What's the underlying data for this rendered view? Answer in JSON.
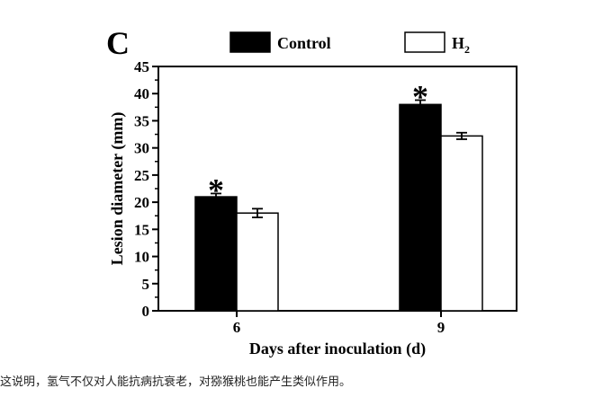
{
  "panel_label": "C",
  "caption": "这说明，氢气不仅对人能抗病抗衰老，对猕猴桃也能产生类似作用。",
  "chart_data": {
    "type": "bar",
    "title": "",
    "xlabel": "Days after inoculation (d)",
    "ylabel": "Lesion diameter (mm)",
    "ylim": [
      0,
      45
    ],
    "yticks": [
      0,
      5,
      10,
      15,
      20,
      25,
      30,
      35,
      40,
      45
    ],
    "categories": [
      "6",
      "9"
    ],
    "legend_position": "top",
    "series": [
      {
        "name": "Control",
        "legend_main": "Control",
        "legend_sub": "",
        "color": "#000000",
        "values": [
          21,
          38
        ],
        "errors": [
          0.6,
          0.8
        ],
        "significance": [
          "*",
          "*"
        ]
      },
      {
        "name": "H2",
        "legend_main": "H",
        "legend_sub": "2",
        "color": "#ffffff",
        "values": [
          18,
          32.2
        ],
        "errors": [
          0.8,
          0.6
        ],
        "significance": [
          "",
          ""
        ]
      }
    ]
  }
}
